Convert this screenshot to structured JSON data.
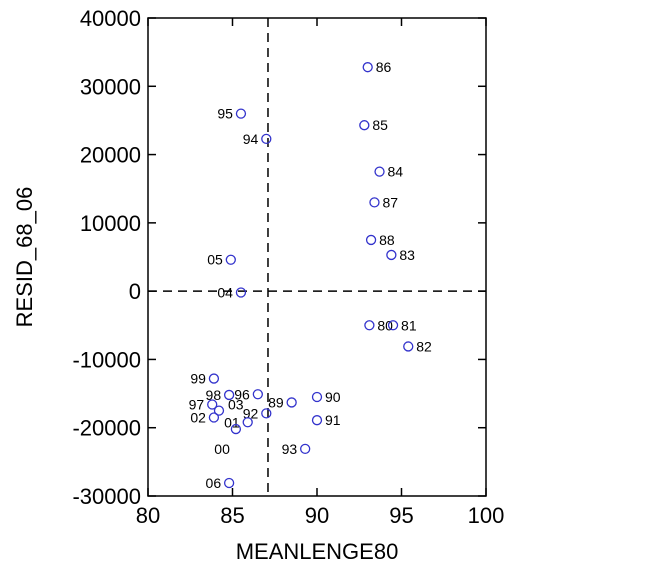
{
  "chart_data": {
    "type": "scatter",
    "title": "",
    "xlabel": "MEANLENGE80",
    "ylabel": "RESID_68_06",
    "xlim": [
      80,
      100
    ],
    "ylim": [
      -30000,
      40000
    ],
    "xticks": [
      80,
      85,
      90,
      95,
      100
    ],
    "yticks": [
      -30000,
      -20000,
      -10000,
      0,
      10000,
      20000,
      30000,
      40000
    ],
    "reference_lines": {
      "x": 87.1,
      "y": 0
    },
    "grid": false,
    "marker_color": "#3333cc",
    "points": [
      {
        "label": "86",
        "x": 93.0,
        "y": 32800
      },
      {
        "label": "95",
        "x": 85.5,
        "y": 26000
      },
      {
        "label": "85",
        "x": 92.8,
        "y": 24300
      },
      {
        "label": "94",
        "x": 87.0,
        "y": 22300
      },
      {
        "label": "84",
        "x": 93.7,
        "y": 17500
      },
      {
        "label": "87",
        "x": 93.4,
        "y": 13000
      },
      {
        "label": "88",
        "x": 93.2,
        "y": 7500
      },
      {
        "label": "83",
        "x": 94.4,
        "y": 5300
      },
      {
        "label": "05",
        "x": 84.9,
        "y": 4600
      },
      {
        "label": "04",
        "x": 85.5,
        "y": -200
      },
      {
        "label": "80",
        "x": 93.1,
        "y": -5000
      },
      {
        "label": "81",
        "x": 94.5,
        "y": -5000
      },
      {
        "label": "82",
        "x": 95.4,
        "y": -8100
      },
      {
        "label": "99",
        "x": 83.9,
        "y": -12800
      },
      {
        "label": "98",
        "x": 84.8,
        "y": -15200
      },
      {
        "label": "96",
        "x": 86.5,
        "y": -15100
      },
      {
        "label": "90",
        "x": 90.0,
        "y": -15500
      },
      {
        "label": "89",
        "x": 88.5,
        "y": -16300
      },
      {
        "label": "97",
        "x": 83.8,
        "y": -16600
      },
      {
        "label": "03",
        "x": 84.2,
        "y": -17500
      },
      {
        "label": "92",
        "x": 87.0,
        "y": -17900
      },
      {
        "label": "02",
        "x": 83.9,
        "y": -18500
      },
      {
        "label": "91",
        "x": 90.0,
        "y": -18900
      },
      {
        "label": "01",
        "x": 85.9,
        "y": -19200
      },
      {
        "label": "00",
        "x": 85.2,
        "y": -20200
      },
      {
        "label": "93",
        "x": 89.3,
        "y": -23100
      },
      {
        "label": "06",
        "x": 84.8,
        "y": -28100
      }
    ]
  }
}
